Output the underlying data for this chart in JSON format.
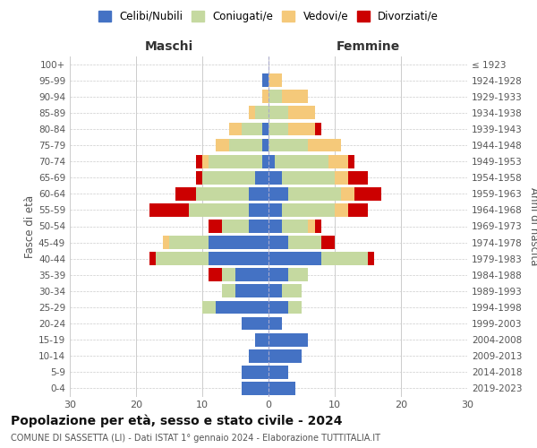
{
  "age_groups": [
    "0-4",
    "5-9",
    "10-14",
    "15-19",
    "20-24",
    "25-29",
    "30-34",
    "35-39",
    "40-44",
    "45-49",
    "50-54",
    "55-59",
    "60-64",
    "65-69",
    "70-74",
    "75-79",
    "80-84",
    "85-89",
    "90-94",
    "95-99",
    "100+"
  ],
  "birth_years": [
    "2019-2023",
    "2014-2018",
    "2009-2013",
    "2004-2008",
    "1999-2003",
    "1994-1998",
    "1989-1993",
    "1984-1988",
    "1979-1983",
    "1974-1978",
    "1969-1973",
    "1964-1968",
    "1959-1963",
    "1954-1958",
    "1949-1953",
    "1944-1948",
    "1939-1943",
    "1934-1938",
    "1929-1933",
    "1924-1928",
    "≤ 1923"
  ],
  "male_celibi": [
    4,
    4,
    3,
    2,
    4,
    8,
    5,
    5,
    9,
    9,
    3,
    3,
    3,
    2,
    1,
    1,
    1,
    0,
    0,
    1,
    0
  ],
  "male_coniugati": [
    0,
    0,
    0,
    0,
    0,
    2,
    2,
    2,
    8,
    6,
    4,
    9,
    8,
    8,
    8,
    5,
    3,
    2,
    0,
    0,
    0
  ],
  "male_vedovi": [
    0,
    0,
    0,
    0,
    0,
    0,
    0,
    0,
    0,
    1,
    0,
    0,
    0,
    0,
    1,
    2,
    2,
    1,
    1,
    0,
    0
  ],
  "male_divorziati": [
    0,
    0,
    0,
    0,
    0,
    0,
    0,
    2,
    1,
    0,
    2,
    6,
    3,
    1,
    1,
    0,
    0,
    0,
    0,
    0,
    0
  ],
  "female_celibi": [
    4,
    3,
    5,
    6,
    2,
    3,
    2,
    3,
    8,
    3,
    2,
    2,
    3,
    2,
    1,
    0,
    0,
    0,
    0,
    0,
    0
  ],
  "female_coniugati": [
    0,
    0,
    0,
    0,
    0,
    2,
    3,
    3,
    7,
    5,
    4,
    8,
    8,
    8,
    8,
    6,
    3,
    3,
    2,
    0,
    0
  ],
  "female_vedovi": [
    0,
    0,
    0,
    0,
    0,
    0,
    0,
    0,
    0,
    0,
    1,
    2,
    2,
    2,
    3,
    5,
    4,
    4,
    4,
    2,
    0
  ],
  "female_divorziati": [
    0,
    0,
    0,
    0,
    0,
    0,
    0,
    0,
    1,
    2,
    1,
    3,
    4,
    3,
    1,
    0,
    1,
    0,
    0,
    0,
    0
  ],
  "color_celibi": "#4472C4",
  "color_coniugati": "#C5D9A0",
  "color_vedovi": "#F5C97A",
  "color_divorziati": "#CC0000",
  "title": "Popolazione per età, sesso e stato civile - 2024",
  "subtitle": "COMUNE DI SASSETTA (LI) - Dati ISTAT 1° gennaio 2024 - Elaborazione TUTTITALIA.IT",
  "xlabel_left": "Maschi",
  "xlabel_right": "Femmine",
  "ylabel_left": "Fasce di età",
  "ylabel_right": "Anni di nascita",
  "xlim": 30,
  "bg_color": "#ffffff",
  "grid_color": "#cccccc"
}
